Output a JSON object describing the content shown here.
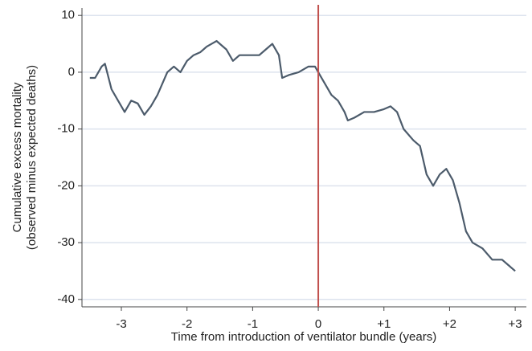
{
  "chart_data": {
    "type": "line",
    "xlabel": "Time from introduction of ventilator bundle (years)",
    "ylabel": [
      "Cumulative excess mortality",
      "(observed minus expected deaths)"
    ],
    "xlim": [
      -3.6,
      3.17
    ],
    "ylim": [
      -41.3,
      11.3
    ],
    "xticks": [
      -3,
      -2,
      -1,
      0,
      {
        "value": 1,
        "label": "+1"
      },
      {
        "value": 2,
        "label": "+2"
      },
      {
        "value": 3,
        "label": "+3"
      }
    ],
    "yticks": [
      10,
      0,
      -10,
      -20,
      -30,
      -40
    ],
    "grid": true,
    "grid_color": "#dde3ee",
    "vline": 0,
    "vline_color": "#c0504d",
    "series": [
      {
        "color": "#4c5b6b",
        "x": [
          -3.48,
          -3.4,
          -3.3,
          -3.25,
          -3.15,
          -3.05,
          -2.95,
          -2.85,
          -2.75,
          -2.65,
          -2.55,
          -2.45,
          -2.3,
          -2.2,
          -2.1,
          -2.0,
          -1.9,
          -1.8,
          -1.7,
          -1.55,
          -1.4,
          -1.3,
          -1.2,
          -1.05,
          -0.9,
          -0.8,
          -0.7,
          -0.6,
          -0.55,
          -0.45,
          -0.3,
          -0.15,
          -0.05,
          0,
          0.1,
          0.2,
          0.3,
          0.4,
          0.45,
          0.55,
          0.7,
          0.85,
          1.0,
          1.1,
          1.2,
          1.3,
          1.45,
          1.55,
          1.65,
          1.75,
          1.85,
          1.95,
          2.05,
          2.15,
          2.25,
          2.35,
          2.5,
          2.65,
          2.8,
          2.9,
          3.0
        ],
        "values": [
          -1,
          -1,
          1,
          1.5,
          -3,
          -5,
          -7,
          -5,
          -5.5,
          -7.5,
          -6,
          -4,
          0,
          1,
          0,
          2,
          3,
          3.5,
          4.5,
          5.5,
          4,
          2,
          3,
          3,
          3,
          4,
          5,
          3,
          -1,
          -0.5,
          0,
          1,
          1,
          0,
          -2,
          -4,
          -5,
          -7,
          -8.5,
          -8,
          -7,
          -7,
          -6.5,
          -6,
          -7,
          -10,
          -12,
          -13,
          -18,
          -20,
          -18,
          -17,
          -19,
          -23,
          -28,
          -30,
          -31,
          -33,
          -33,
          -34,
          -35
        ]
      }
    ]
  }
}
